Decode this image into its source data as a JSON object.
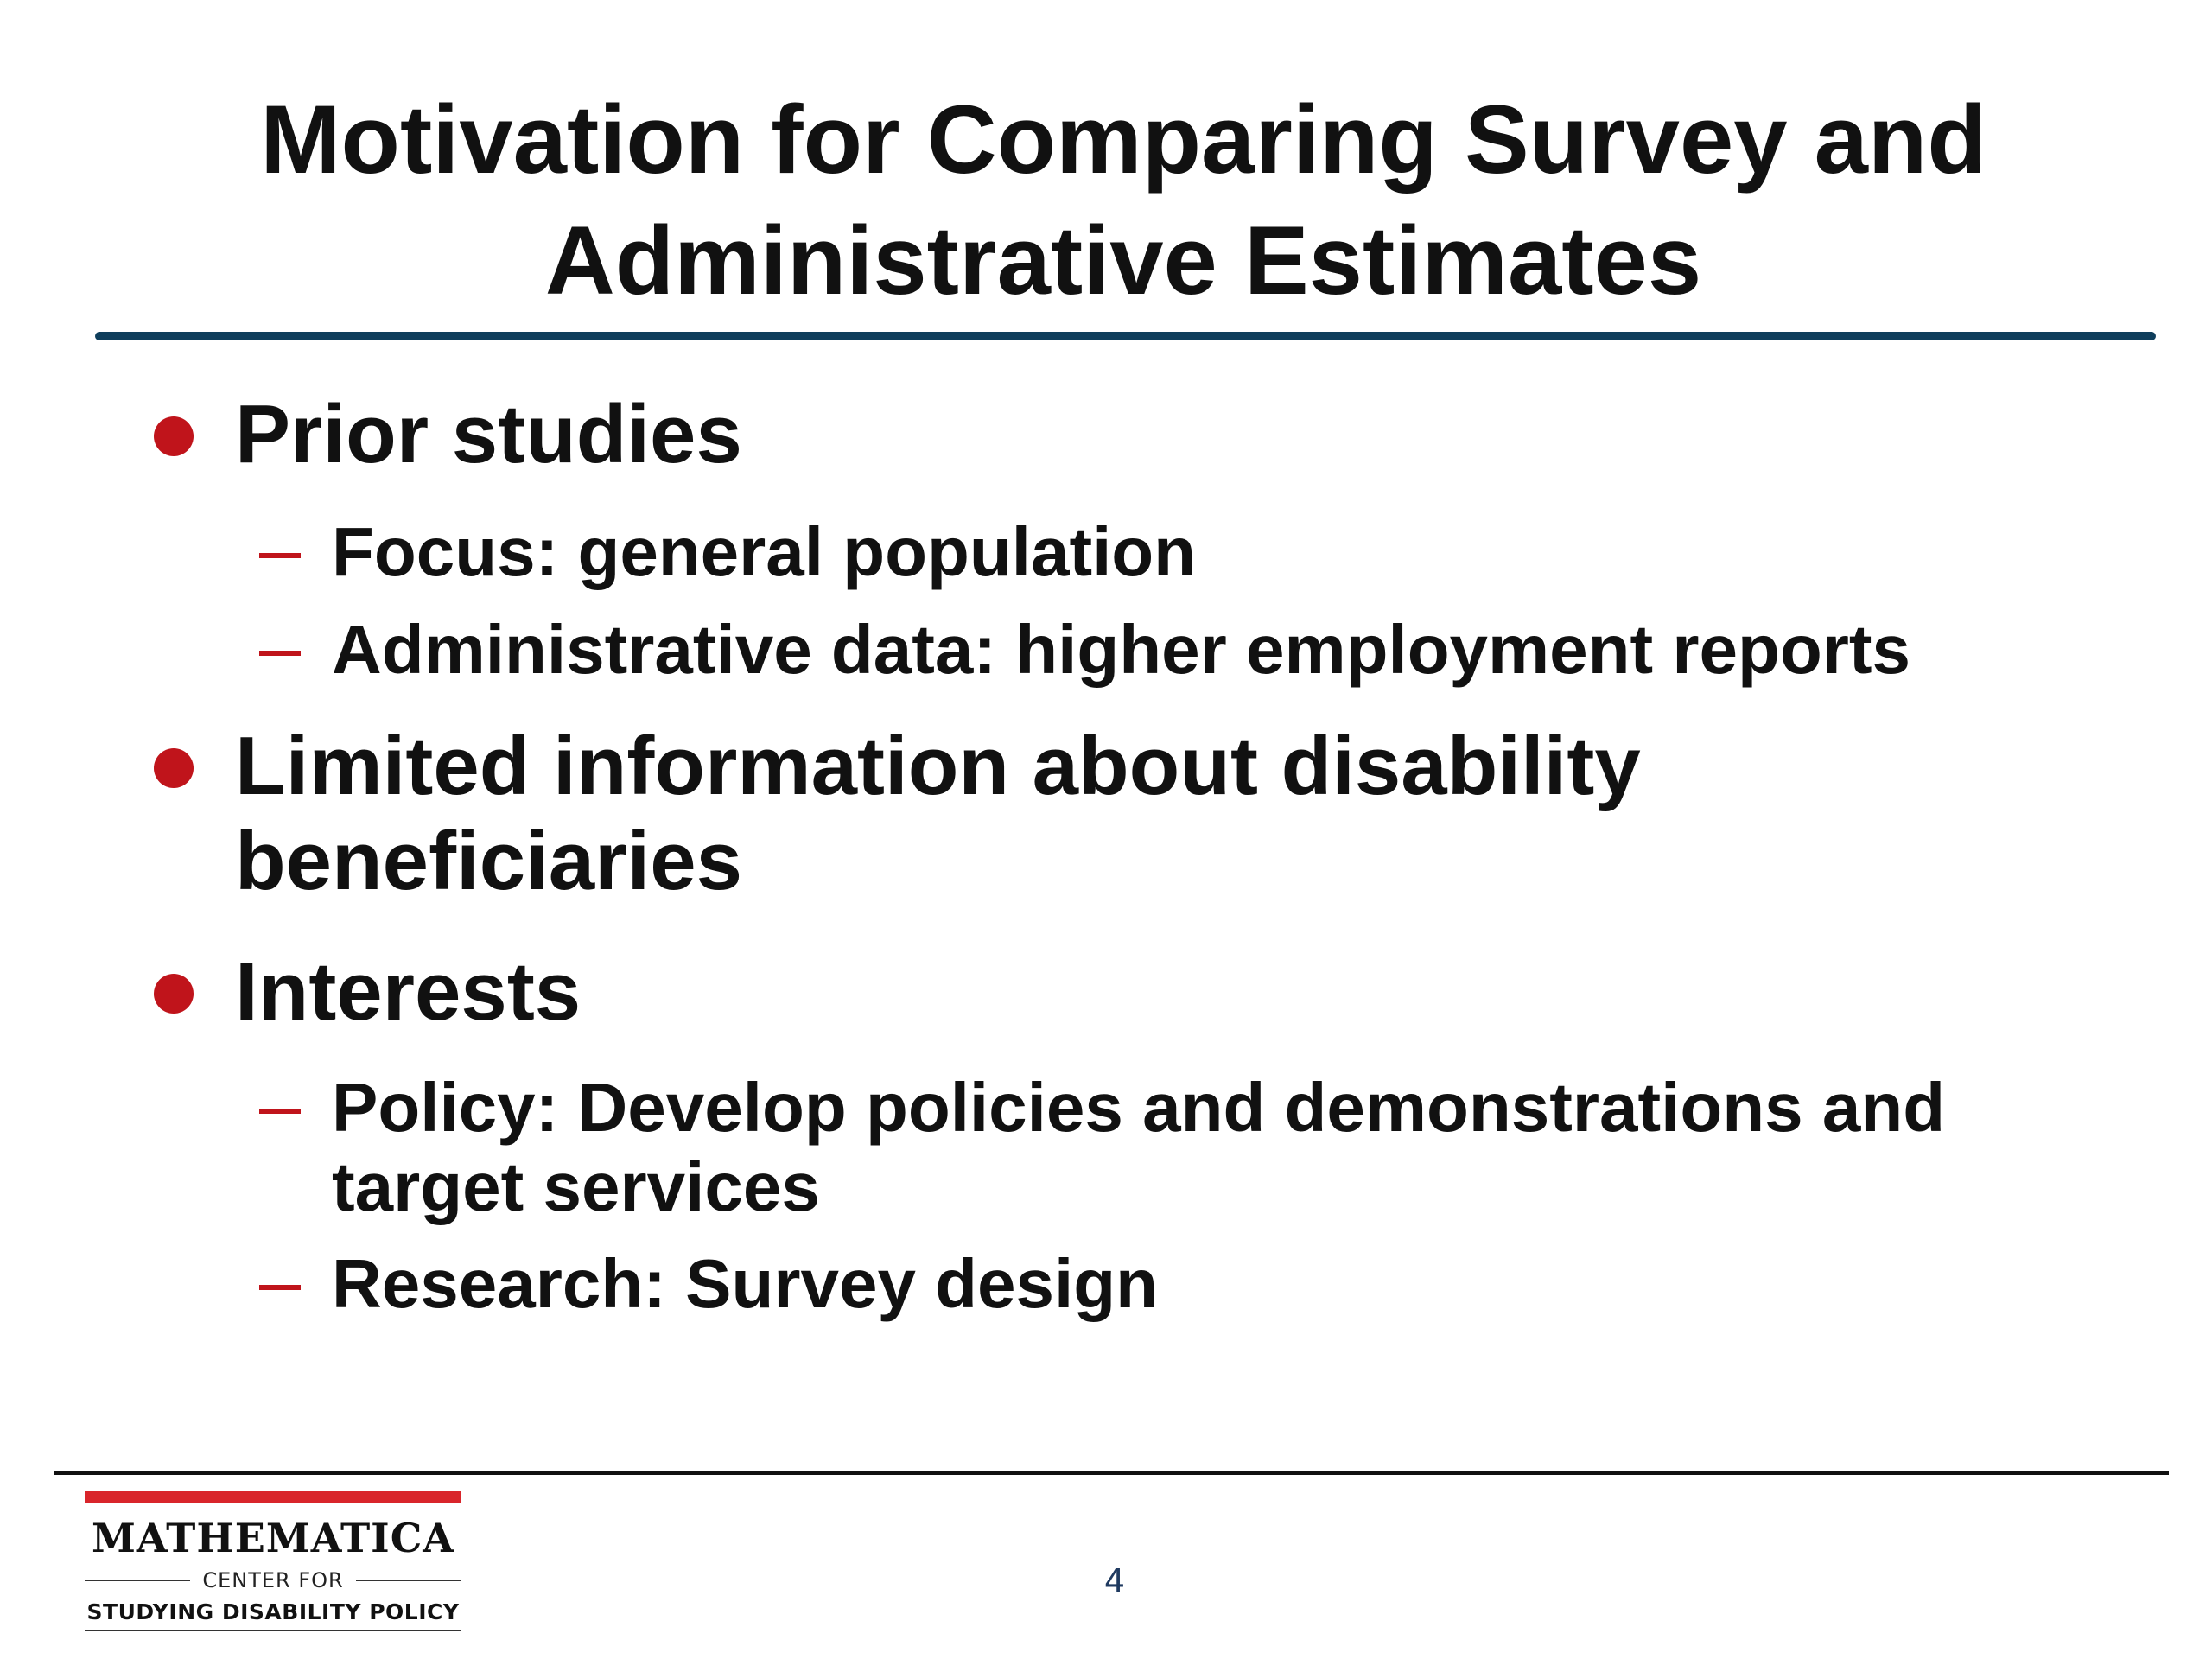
{
  "title": {
    "line1": "Motivation for Comparing Survey and",
    "line2": "Administrative Estimates"
  },
  "bullets": [
    {
      "text": "Prior studies",
      "subs": [
        "Focus: general population",
        "Administrative data: higher employment reports"
      ]
    },
    {
      "text_line1": "Limited information about disability",
      "text_line2": "beneficiaries"
    },
    {
      "text": "Interests",
      "subs": [
        {
          "line1": "Policy: Develop policies and demonstrations and",
          "line2": "target services"
        },
        "Research: Survey design"
      ]
    }
  ],
  "footer": {
    "logo": {
      "name": "MATHEMATICA",
      "center_for": "CENTER FOR",
      "policy": "STUDYING DISABILITY POLICY"
    },
    "page_number": "4"
  },
  "colors": {
    "bullet": "#c0141b",
    "title_rule": "#0f3e5c",
    "page_number": "#1f3a60",
    "logo_bar": "#d9252b"
  }
}
